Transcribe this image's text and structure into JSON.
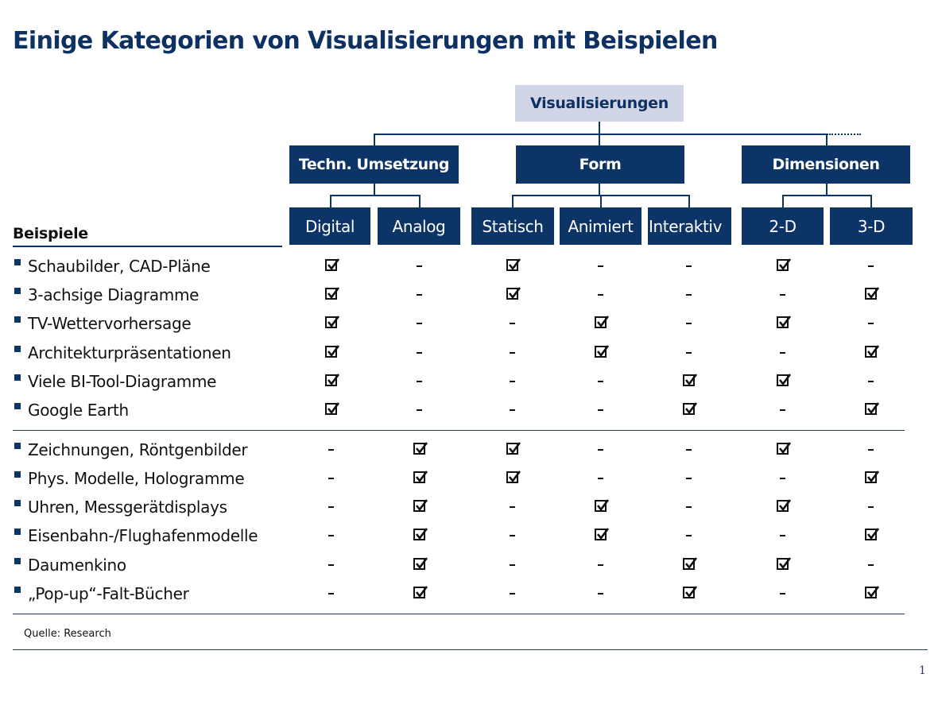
{
  "title": "Einige Kategorien von Visualisierungen mit Beispielen",
  "tree": {
    "root": "Visualisierungen",
    "categories": [
      {
        "label": "Techn. Umsetzung",
        "children": [
          "Digital",
          "Analog"
        ]
      },
      {
        "label": "Form",
        "children": [
          "Statisch",
          "Animiert",
          "Interaktiv"
        ]
      },
      {
        "label": "Dimensionen",
        "children": [
          "2-D",
          "3-D"
        ]
      }
    ],
    "more_indicator": "........"
  },
  "columns": [
    "Digital",
    "Analog",
    "Statisch",
    "Animiert",
    "Interaktiv",
    "2-D",
    "3-D"
  ],
  "examples_header": "Beispiele",
  "legend": {
    "check": "checked-box",
    "dash": "-"
  },
  "groups": [
    {
      "rows": [
        {
          "label": "Schaubilder, CAD-Pläne",
          "values": [
            1,
            0,
            1,
            0,
            0,
            1,
            0
          ]
        },
        {
          "label": "3-achsige Diagramme",
          "values": [
            1,
            0,
            1,
            0,
            0,
            0,
            1
          ]
        },
        {
          "label": "TV-Wettervorhersage",
          "values": [
            1,
            0,
            0,
            1,
            0,
            1,
            0
          ]
        },
        {
          "label": "Architekturpräsentationen",
          "values": [
            1,
            0,
            0,
            1,
            0,
            0,
            1
          ]
        },
        {
          "label": "Viele BI-Tool-Diagramme",
          "values": [
            1,
            0,
            0,
            0,
            1,
            1,
            0
          ]
        },
        {
          "label": "Google Earth",
          "values": [
            1,
            0,
            0,
            0,
            1,
            0,
            1
          ]
        }
      ]
    },
    {
      "rows": [
        {
          "label": "Zeichnungen, Röntgenbilder",
          "values": [
            0,
            1,
            1,
            0,
            0,
            1,
            0
          ]
        },
        {
          "label": "Phys. Modelle, Hologramme",
          "values": [
            0,
            1,
            1,
            0,
            0,
            0,
            1
          ]
        },
        {
          "label": "Uhren, Messgerätdisplays",
          "values": [
            0,
            1,
            0,
            1,
            0,
            1,
            0
          ]
        },
        {
          "label": "Eisenbahn-/Flughafenmodelle",
          "values": [
            0,
            1,
            0,
            1,
            0,
            0,
            1
          ]
        },
        {
          "label": "Daumenkino",
          "values": [
            0,
            1,
            0,
            0,
            1,
            1,
            0
          ]
        },
        {
          "label": "„Pop-up“-Falt-Bücher",
          "values": [
            0,
            1,
            0,
            0,
            1,
            0,
            1
          ]
        }
      ]
    }
  ],
  "source": "Quelle: Research",
  "page_number": "1",
  "colors": {
    "navy": "#0d3466",
    "title": "#0e3163",
    "root_fill": "#d0d5e8"
  }
}
